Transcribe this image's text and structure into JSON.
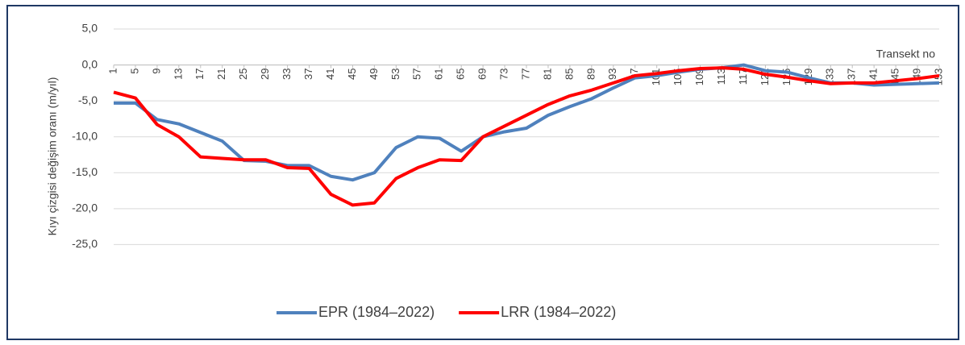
{
  "chart_data": {
    "type": "line",
    "y_label": "Kıyı çizgisi değişim oranı (m/yıl)",
    "x_label": "Transekt no",
    "x": [
      1,
      5,
      9,
      13,
      17,
      21,
      25,
      29,
      33,
      37,
      41,
      45,
      49,
      53,
      57,
      61,
      65,
      69,
      73,
      77,
      81,
      85,
      89,
      93,
      97,
      101,
      105,
      109,
      113,
      117,
      121,
      125,
      129,
      133,
      137,
      141,
      145,
      149,
      153
    ],
    "xlim": [
      1,
      153
    ],
    "xticks": [
      1,
      5,
      9,
      13,
      17,
      21,
      25,
      29,
      33,
      37,
      41,
      45,
      49,
      53,
      57,
      61,
      65,
      69,
      73,
      77,
      81,
      85,
      89,
      93,
      97,
      101,
      105,
      109,
      113,
      117,
      121,
      125,
      129,
      133,
      137,
      141,
      145,
      149,
      153
    ],
    "ylim": [
      -30,
      5
    ],
    "yticks": [
      {
        "value": 5,
        "label": "5,0"
      },
      {
        "value": 0,
        "label": "0,0"
      },
      {
        "value": -5,
        "label": "-5,0"
      },
      {
        "value": -10,
        "label": "-10,0"
      },
      {
        "value": -15,
        "label": "-15,0"
      },
      {
        "value": -20,
        "label": "-20,0"
      },
      {
        "value": -25,
        "label": "-25,0"
      }
    ],
    "grid": true,
    "legend": "bottom",
    "series": [
      {
        "name": "EPR (1984–2022)",
        "color": "#4f81bd",
        "values": [
          -5.3,
          -5.3,
          -7.6,
          -8.2,
          -9.4,
          -10.6,
          -13.3,
          -13.4,
          -14.0,
          -14.0,
          -15.5,
          -16.0,
          -15.0,
          -11.5,
          -10.0,
          -10.2,
          -12.0,
          -10.0,
          -9.3,
          -8.8,
          -7.0,
          -5.8,
          -4.7,
          -3.2,
          -1.8,
          -1.5,
          -1.0,
          -0.6,
          -0.4,
          0.0,
          -0.8,
          -1.0,
          -1.8,
          -2.5,
          -2.5,
          -2.8,
          -2.7,
          -2.6,
          -2.5
        ]
      },
      {
        "name": "LRR (1984–2022)",
        "color": "#ff0000",
        "values": [
          -3.8,
          -4.6,
          -8.3,
          -10.0,
          -12.8,
          -13.0,
          -13.2,
          -13.2,
          -14.3,
          -14.4,
          -18.0,
          -19.5,
          -19.2,
          -15.8,
          -14.3,
          -13.2,
          -13.3,
          -10.0,
          -8.5,
          -7.0,
          -5.5,
          -4.3,
          -3.5,
          -2.5,
          -1.5,
          -1.2,
          -0.8,
          -0.5,
          -0.4,
          -0.6,
          -1.3,
          -1.7,
          -2.2,
          -2.6,
          -2.5,
          -2.5,
          -2.2,
          -1.9,
          -1.5
        ]
      }
    ]
  }
}
